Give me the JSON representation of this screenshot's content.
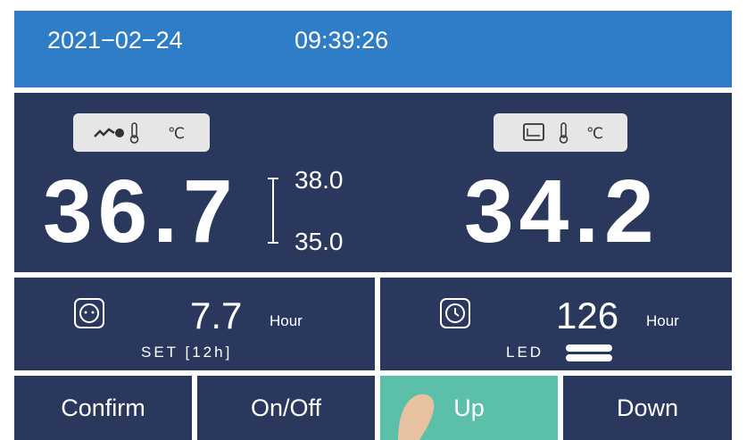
{
  "header": {
    "date": "2021−02−24",
    "time": "09:39:26"
  },
  "skin_sensor": {
    "unit": "℃",
    "value": "36.7",
    "high": "38.0",
    "low": "35.0"
  },
  "mattress_sensor": {
    "unit": "℃",
    "value": "34.2"
  },
  "baby_timer": {
    "value": "7.7",
    "unit": "Hour",
    "setting": "SET [12h]"
  },
  "led_timer": {
    "value": "126",
    "unit": "Hour",
    "label": "LED"
  },
  "buttons": [
    "Confirm",
    "On/Off",
    "Up",
    "Down"
  ]
}
